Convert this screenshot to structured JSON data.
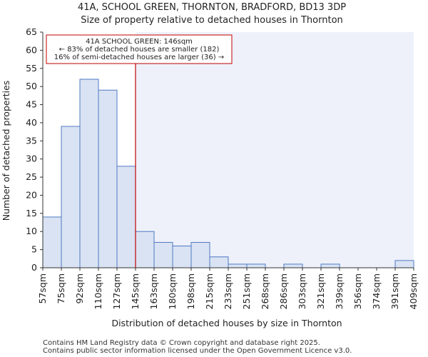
{
  "chart_data": {
    "type": "bar",
    "title": "41A, SCHOOL GREEN, THORNTON, BRADFORD, BD13 3DP",
    "subtitle": "Size of property relative to detached houses in Thornton",
    "xlabel": "Distribution of detached houses by size in Thornton",
    "ylabel": "Number of detached properties",
    "ylim": [
      0,
      65
    ],
    "yticks": [
      0,
      5,
      10,
      15,
      20,
      25,
      30,
      35,
      40,
      45,
      50,
      55,
      60,
      65
    ],
    "bin_edges": [
      "57sqm",
      "75sqm",
      "92sqm",
      "110sqm",
      "127sqm",
      "145sqm",
      "163sqm",
      "180sqm",
      "198sqm",
      "215sqm",
      "233sqm",
      "251sqm",
      "268sqm",
      "286sqm",
      "303sqm",
      "321sqm",
      "339sqm",
      "356sqm",
      "374sqm",
      "391sqm",
      "409sqm"
    ],
    "values": [
      14,
      39,
      52,
      49,
      28,
      10,
      7,
      6,
      7,
      3,
      1,
      1,
      0,
      1,
      0,
      1,
      0,
      0,
      0,
      2
    ],
    "property_bin_index": 5,
    "annotation": {
      "line1": "41A SCHOOL GREEN: 146sqm",
      "line2": "← 83% of detached houses are smaller (182)",
      "line3": "16% of semi-detached houses are larger (36) →"
    },
    "colors": {
      "bar_fill": "#dae3f3",
      "bar_stroke": "#4f79c3",
      "marker": "#c00000",
      "shade": "#eef1fa"
    }
  },
  "footer": {
    "line1": "Contains HM Land Registry data © Crown copyright and database right 2025.",
    "line2": "Contains public sector information licensed under the Open Government Licence v3.0."
  }
}
